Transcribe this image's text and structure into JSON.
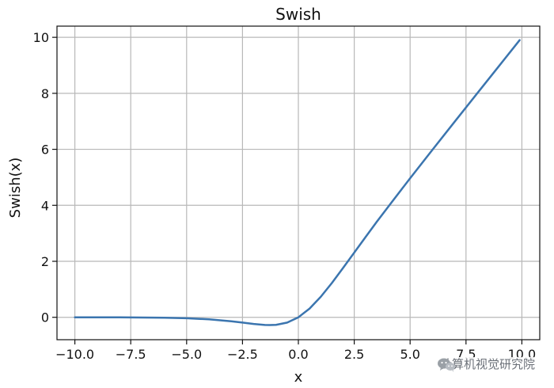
{
  "chart_data": {
    "type": "line",
    "title": "Swish",
    "xlabel": "x",
    "ylabel": "Swish(x)",
    "xlim": [
      -10.8,
      10.8
    ],
    "ylim": [
      -0.8,
      10.4
    ],
    "x_ticks": [
      -10,
      -7.5,
      -5,
      -2.5,
      0,
      2.5,
      5,
      7.5,
      10
    ],
    "x_tick_labels": [
      "−10.0",
      "−7.5",
      "−5.0",
      "−2.5",
      "0.0",
      "2.5",
      "5.0",
      "7.5",
      "10.0"
    ],
    "y_ticks": [
      0,
      2,
      4,
      6,
      8,
      10
    ],
    "y_tick_labels": [
      "0",
      "2",
      "4",
      "6",
      "8",
      "10"
    ],
    "grid": true,
    "series": [
      {
        "color": "#3b75af",
        "x": [
          -10,
          -9,
          -8,
          -7,
          -6,
          -5,
          -4,
          -3,
          -2.5,
          -2,
          -1.5,
          -1.278,
          -1,
          -0.5,
          0,
          0.5,
          1,
          1.5,
          2,
          2.5,
          3,
          3.5,
          4,
          5,
          6,
          7,
          8,
          9,
          9.9
        ],
        "y": [
          -0.0005,
          -0.0011,
          -0.0027,
          -0.0064,
          -0.0148,
          -0.0335,
          -0.0719,
          -0.1423,
          -0.1896,
          -0.2384,
          -0.2736,
          -0.2785,
          -0.2689,
          -0.1888,
          0,
          0.3112,
          0.7311,
          1.2264,
          1.7616,
          2.3104,
          2.8577,
          3.4032,
          3.9281,
          4.9665,
          5.9852,
          6.9936,
          7.9973,
          8.999,
          9.8995
        ]
      }
    ]
  },
  "watermark": {
    "icon": "wechat-icon",
    "text": "计算机视觉研究院"
  }
}
